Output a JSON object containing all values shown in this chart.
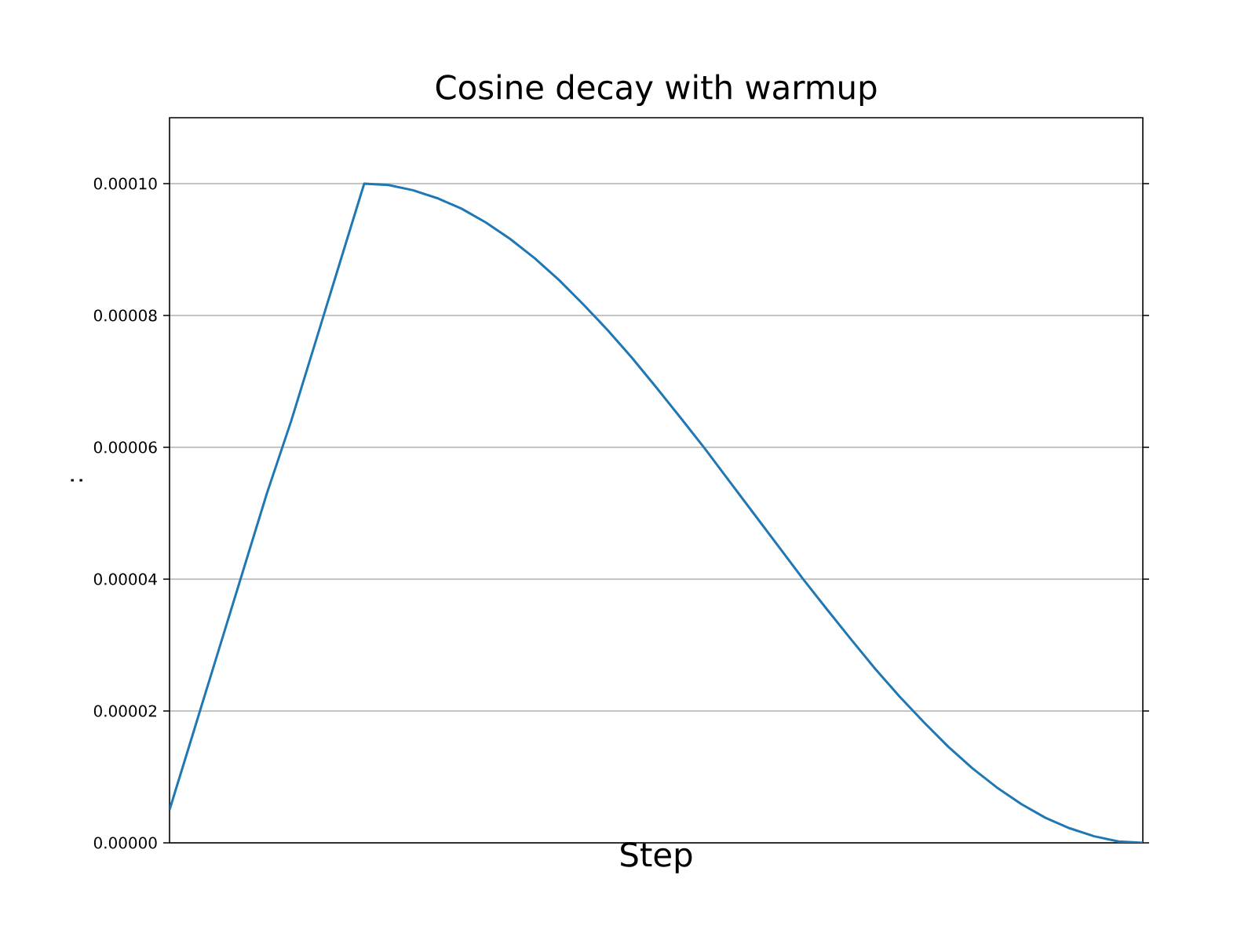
{
  "chart_data": {
    "type": "line",
    "title": "Cosine decay with warmup",
    "xlabel": "Step",
    "ylabel": ":",
    "categories": [
      null,
      null,
      null,
      null,
      null,
      null,
      null,
      null,
      null,
      null,
      null,
      null,
      null,
      null,
      null,
      null,
      null,
      null,
      null,
      null,
      null,
      null,
      null,
      null,
      null,
      null,
      null,
      null,
      null,
      null,
      null,
      null,
      null,
      null,
      null,
      null,
      null,
      null,
      null,
      null,
      null
    ],
    "series": [
      {
        "color": "#1f77b4",
        "values": [
          5e-06,
          1.7e-05,
          2.9e-05,
          4.1e-05,
          5.3e-05,
          6.4e-05,
          7.6e-05,
          8.8e-05,
          0.0001,
          9.98e-05,
          9.9e-05,
          9.78e-05,
          9.62e-05,
          9.41e-05,
          9.16e-05,
          8.87e-05,
          8.54e-05,
          8.17e-05,
          7.78e-05,
          7.36e-05,
          6.91e-05,
          6.45e-05,
          5.98e-05,
          5.49e-05,
          5e-05,
          4.51e-05,
          4.02e-05,
          3.55e-05,
          3.09e-05,
          2.64e-05,
          2.22e-05,
          1.83e-05,
          1.46e-05,
          1.13e-05,
          8.4e-06,
          5.9e-06,
          3.8e-06,
          2.2e-06,
          1e-06,
          2e-07,
          0
        ]
      }
    ],
    "ylim": [
      0,
      0.00011
    ],
    "yticks": [
      {
        "value": 0,
        "label": "0.00000"
      },
      {
        "value": 2e-05,
        "label": "0.00002"
      },
      {
        "value": 4e-05,
        "label": "0.00004"
      },
      {
        "value": 6e-05,
        "label": "0.00006"
      },
      {
        "value": 8e-05,
        "label": "0.00008"
      },
      {
        "value": 0.0001,
        "label": "0.00010"
      }
    ],
    "grid": "y",
    "tick_labels": "y"
  }
}
